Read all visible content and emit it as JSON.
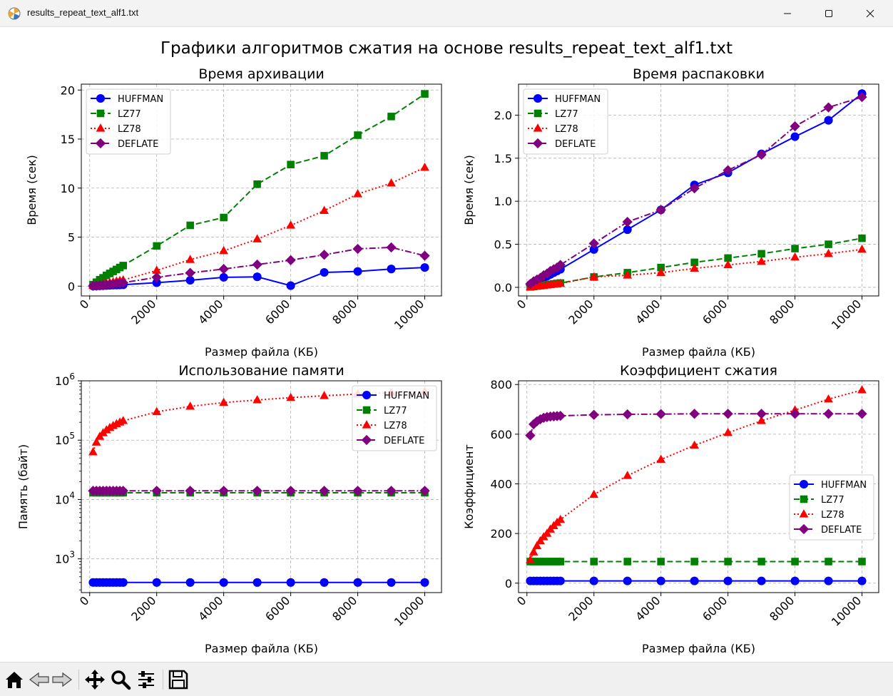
{
  "window": {
    "title": "results_repeat_text_alf1.txt"
  },
  "figure": {
    "suptitle": "Графики алгоритмов сжатия на основе results_repeat_text_alf1.txt"
  },
  "colors": {
    "HUFFMAN": "#0000ff",
    "LZ77": "#008000",
    "LZ78": "#ff0000",
    "DEFLATE": "#800080"
  },
  "icons": [
    "home-icon",
    "back-icon",
    "forward-icon",
    "pan-icon",
    "zoom-icon",
    "configure-icon",
    "save-icon"
  ],
  "chart_data": [
    {
      "type": "line",
      "title": "Время архивации",
      "xlabel": "Размер файла (КБ)",
      "ylabel": "Время (сек)",
      "xlim": [
        -250,
        10500
      ],
      "ylim": [
        -1.0,
        20.6
      ],
      "xticks": [
        0,
        2000,
        4000,
        6000,
        8000,
        10000
      ],
      "yticks": [
        0,
        5,
        10,
        15,
        20
      ],
      "yscale": "linear",
      "grid": true,
      "legend": "top-left",
      "x": [
        100,
        200,
        300,
        400,
        500,
        600,
        700,
        800,
        900,
        1000,
        2000,
        3000,
        4000,
        5000,
        6000,
        7000,
        8000,
        9000,
        10000
      ],
      "series": [
        {
          "name": "HUFFMAN",
          "values": [
            0.01,
            0.02,
            0.04,
            0.05,
            0.07,
            0.08,
            0.1,
            0.11,
            0.12,
            0.14,
            0.35,
            0.6,
            0.9,
            0.95,
            0.05,
            1.4,
            1.5,
            1.75,
            1.9
          ]
        },
        {
          "name": "LZ77",
          "values": [
            0.15,
            0.4,
            0.65,
            0.85,
            1.1,
            1.3,
            1.5,
            1.7,
            1.9,
            2.1,
            4.1,
            6.2,
            7.0,
            10.4,
            12.4,
            13.3,
            15.4,
            17.3,
            19.6
          ]
        },
        {
          "name": "LZ78",
          "values": [
            0.05,
            0.1,
            0.15,
            0.22,
            0.3,
            0.36,
            0.42,
            0.5,
            0.56,
            0.62,
            1.6,
            2.7,
            3.6,
            4.8,
            6.2,
            7.7,
            9.4,
            10.5,
            12.1
          ]
        },
        {
          "name": "DEFLATE",
          "values": [
            0.02,
            0.04,
            0.07,
            0.1,
            0.14,
            0.17,
            0.2,
            0.25,
            0.3,
            0.35,
            0.9,
            1.35,
            1.75,
            2.2,
            2.65,
            3.2,
            3.8,
            3.95,
            3.1
          ]
        }
      ]
    },
    {
      "type": "line",
      "title": "Время распаковки",
      "xlabel": "Размер файла (КБ)",
      "ylabel": "Время (сек)",
      "xlim": [
        -250,
        10500
      ],
      "ylim": [
        -0.1,
        2.36
      ],
      "xticks": [
        0,
        2000,
        4000,
        6000,
        8000,
        10000
      ],
      "yticks": [
        0.0,
        0.5,
        1.0,
        1.5,
        2.0
      ],
      "yscale": "linear",
      "grid": true,
      "legend": "top-left",
      "x": [
        100,
        200,
        300,
        400,
        500,
        600,
        700,
        800,
        900,
        1000,
        2000,
        3000,
        4000,
        5000,
        6000,
        7000,
        8000,
        9000,
        10000
      ],
      "series": [
        {
          "name": "HUFFMAN",
          "values": [
            0.03,
            0.05,
            0.07,
            0.09,
            0.11,
            0.13,
            0.15,
            0.17,
            0.19,
            0.21,
            0.44,
            0.67,
            0.9,
            1.19,
            1.33,
            1.55,
            1.75,
            1.94,
            2.25
          ]
        },
        {
          "name": "LZ77",
          "values": [
            0.005,
            0.01,
            0.015,
            0.02,
            0.025,
            0.03,
            0.035,
            0.04,
            0.045,
            0.05,
            0.12,
            0.17,
            0.23,
            0.29,
            0.34,
            0.39,
            0.45,
            0.5,
            0.57
          ]
        },
        {
          "name": "LZ78",
          "values": [
            0.004,
            0.008,
            0.012,
            0.016,
            0.02,
            0.025,
            0.03,
            0.035,
            0.04,
            0.045,
            0.12,
            0.14,
            0.17,
            0.22,
            0.26,
            0.3,
            0.35,
            0.39,
            0.44
          ]
        },
        {
          "name": "DEFLATE",
          "values": [
            0.04,
            0.07,
            0.09,
            0.11,
            0.14,
            0.16,
            0.19,
            0.21,
            0.23,
            0.26,
            0.51,
            0.76,
            0.9,
            1.15,
            1.36,
            1.54,
            1.87,
            2.09,
            2.21
          ]
        }
      ]
    },
    {
      "type": "line",
      "title": "Использование памяти",
      "xlabel": "Размер файла (КБ)",
      "ylabel": "Память (байт)",
      "xlim": [
        -250,
        10500
      ],
      "ylim": [
        270,
        1000000
      ],
      "xticks": [
        0,
        2000,
        4000,
        6000,
        8000,
        10000
      ],
      "yticks": [
        1000,
        10000,
        100000,
        1000000
      ],
      "yticklabels": [
        "10^3",
        "10^4",
        "10^5",
        "10^6"
      ],
      "yscale": "log",
      "grid": true,
      "legend": "top-right",
      "x": [
        100,
        200,
        300,
        400,
        500,
        600,
        700,
        800,
        900,
        1000,
        2000,
        3000,
        4000,
        5000,
        6000,
        7000,
        8000,
        9000,
        10000
      ],
      "series": [
        {
          "name": "HUFFMAN",
          "values": [
            400,
            400,
            400,
            400,
            400,
            400,
            400,
            400,
            400,
            400,
            400,
            400,
            400,
            400,
            400,
            400,
            400,
            400,
            400
          ]
        },
        {
          "name": "LZ77",
          "values": [
            13000,
            13000,
            13000,
            13000,
            13000,
            13000,
            13000,
            13000,
            13000,
            13000,
            13000,
            13000,
            13000,
            13000,
            13000,
            13000,
            13000,
            13000,
            13000
          ]
        },
        {
          "name": "LZ78",
          "values": [
            63000,
            92000,
            115000,
            132000,
            148000,
            162000,
            175000,
            188000,
            200000,
            212000,
            300000,
            370000,
            430000,
            475000,
            520000,
            560000,
            600000,
            630000,
            660000
          ]
        },
        {
          "name": "DEFLATE",
          "values": [
            14000,
            14000,
            14000,
            14000,
            14000,
            14000,
            14000,
            14000,
            14000,
            14000,
            14000,
            14000,
            14000,
            14000,
            14000,
            14000,
            14000,
            14000,
            14000
          ]
        }
      ]
    },
    {
      "type": "line",
      "title": "Коэффициент сжатия",
      "xlabel": "Размер файла (КБ)",
      "ylabel": "Коэффициент",
      "xlim": [
        -250,
        10500
      ],
      "ylim": [
        -38,
        815
      ],
      "xticks": [
        0,
        2000,
        4000,
        6000,
        8000,
        10000
      ],
      "yticks": [
        0,
        200,
        400,
        600,
        800
      ],
      "yscale": "linear",
      "grid": true,
      "legend": "center-right",
      "x": [
        100,
        200,
        300,
        400,
        500,
        600,
        700,
        800,
        900,
        1000,
        2000,
        3000,
        4000,
        5000,
        6000,
        7000,
        8000,
        9000,
        10000
      ],
      "series": [
        {
          "name": "HUFFMAN",
          "values": [
            9,
            9,
            9,
            9,
            9,
            9,
            9,
            9,
            9,
            9,
            9,
            9,
            9,
            9,
            9,
            9,
            9,
            9,
            9
          ]
        },
        {
          "name": "LZ77",
          "values": [
            87,
            87,
            87,
            87,
            87,
            87,
            87,
            87,
            87,
            87,
            87,
            87,
            87,
            87,
            87,
            87,
            87,
            87,
            87
          ]
        },
        {
          "name": "LZ78",
          "values": [
            93,
            125,
            150,
            170,
            186,
            200,
            217,
            231,
            244,
            256,
            357,
            433,
            498,
            555,
            606,
            654,
            697,
            741,
            778
          ]
        },
        {
          "name": "DEFLATE",
          "values": [
            595,
            640,
            652,
            660,
            666,
            669,
            671,
            672,
            673,
            674,
            678,
            680,
            681,
            682,
            682,
            682,
            682,
            682,
            682
          ]
        }
      ]
    }
  ]
}
